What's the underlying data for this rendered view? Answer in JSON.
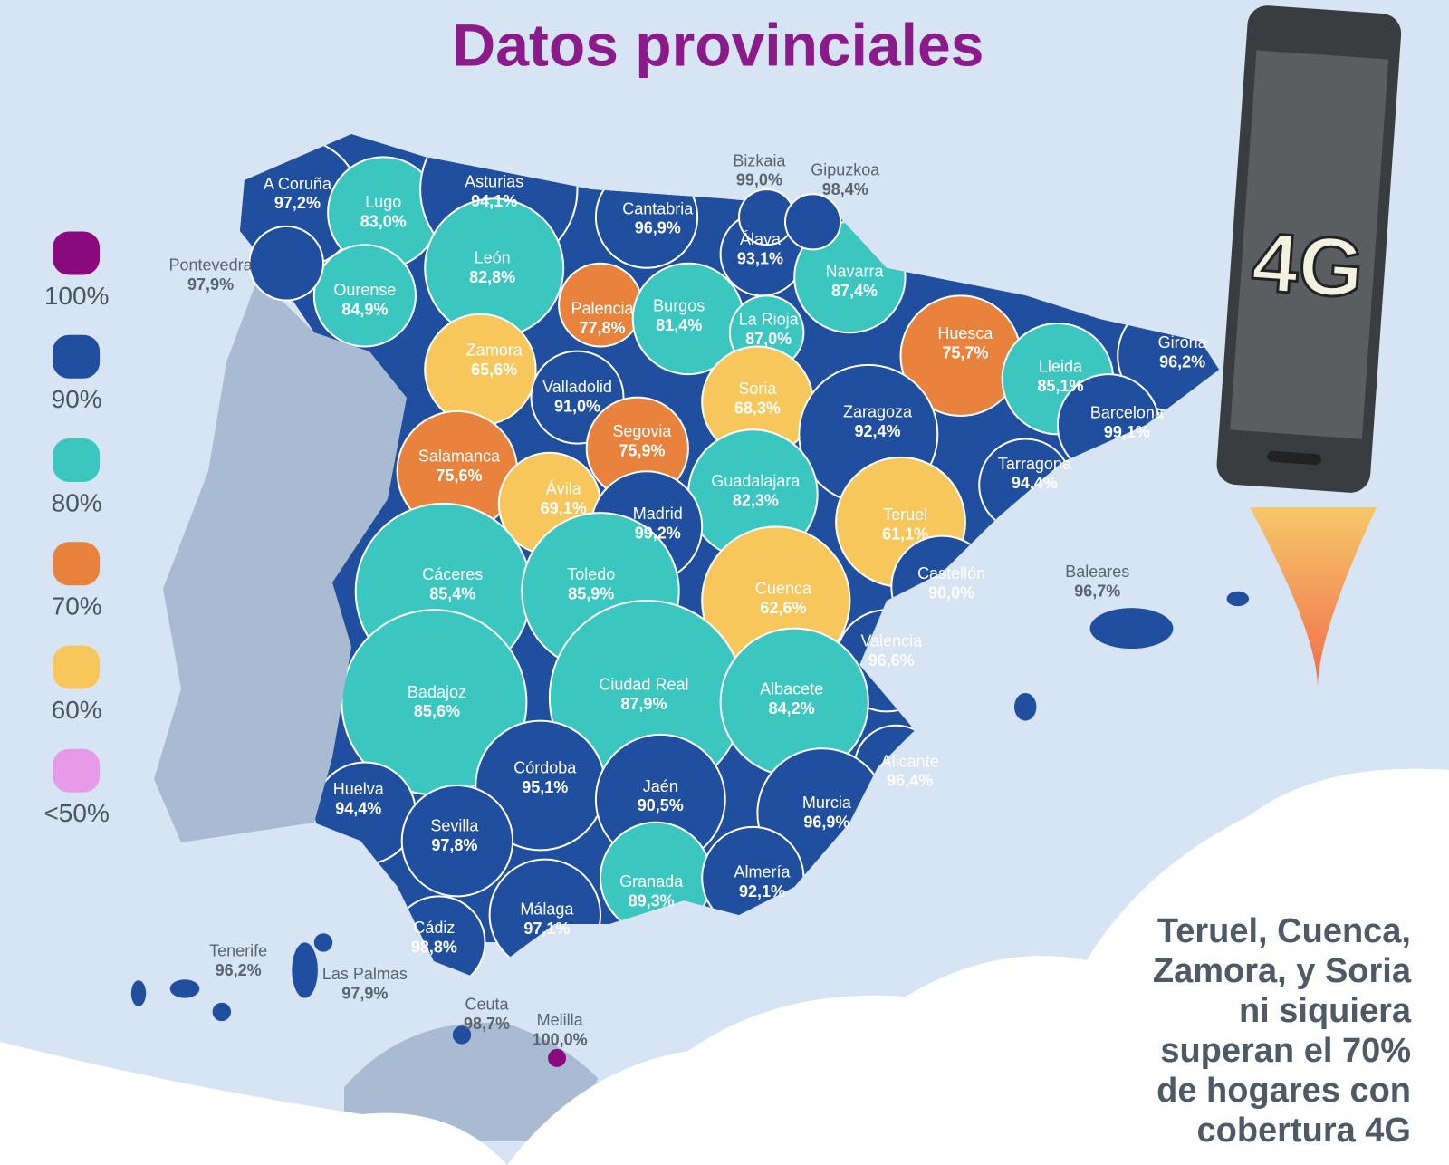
{
  "header": {
    "title": "Datos provinciales"
  },
  "legend": {
    "items": [
      {
        "label": "100%",
        "color": "#8a0a7e"
      },
      {
        "label": "90%",
        "color": "#1f4f9e"
      },
      {
        "label": "80%",
        "color": "#3cc6c0"
      },
      {
        "label": "70%",
        "color": "#e8823c"
      },
      {
        "label": "60%",
        "color": "#f7c75c"
      },
      {
        "label": "<50%",
        "color": "#e59be8"
      }
    ]
  },
  "provinces": [
    {
      "name": "A Coruña",
      "value": "97,2%",
      "color": "#1f4f9e"
    },
    {
      "name": "Lugo",
      "value": "83,0%",
      "color": "#3cc6c0"
    },
    {
      "name": "Asturias",
      "value": "94,1%",
      "color": "#1f4f9e"
    },
    {
      "name": "Cantabria",
      "value": "96,9%",
      "color": "#1f4f9e"
    },
    {
      "name": "Bizkaia",
      "value": "99,0%",
      "color": "#1f4f9e"
    },
    {
      "name": "Gipuzkoa",
      "value": "98,4%",
      "color": "#1f4f9e"
    },
    {
      "name": "Pontevedra",
      "value": "97,9%",
      "color": "#1f4f9e"
    },
    {
      "name": "Ourense",
      "value": "84,9%",
      "color": "#3cc6c0"
    },
    {
      "name": "León",
      "value": "82,8%",
      "color": "#3cc6c0"
    },
    {
      "name": "Palencia",
      "value": "77,8%",
      "color": "#e8823c"
    },
    {
      "name": "Burgos",
      "value": "81,4%",
      "color": "#3cc6c0"
    },
    {
      "name": "Álava",
      "value": "93,1%",
      "color": "#1f4f9e"
    },
    {
      "name": "La Rioja",
      "value": "87,0%",
      "color": "#3cc6c0"
    },
    {
      "name": "Navarra",
      "value": "87,4%",
      "color": "#3cc6c0"
    },
    {
      "name": "Huesca",
      "value": "75,7%",
      "color": "#e8823c"
    },
    {
      "name": "Lleida",
      "value": "85,1%",
      "color": "#3cc6c0"
    },
    {
      "name": "Girona",
      "value": "96,2%",
      "color": "#1f4f9e"
    },
    {
      "name": "Barcelona",
      "value": "99,1%",
      "color": "#1f4f9e"
    },
    {
      "name": "Zamora",
      "value": "65,6%",
      "color": "#f7c75c"
    },
    {
      "name": "Valladolid",
      "value": "91,0%",
      "color": "#1f4f9e"
    },
    {
      "name": "Soria",
      "value": "68,3%",
      "color": "#f7c75c"
    },
    {
      "name": "Zaragoza",
      "value": "92,4%",
      "color": "#1f4f9e"
    },
    {
      "name": "Tarragona",
      "value": "94,4%",
      "color": "#1f4f9e"
    },
    {
      "name": "Salamanca",
      "value": "75,6%",
      "color": "#e8823c"
    },
    {
      "name": "Segovia",
      "value": "75,9%",
      "color": "#e8823c"
    },
    {
      "name": "Ávila",
      "value": "69,1%",
      "color": "#f7c75c"
    },
    {
      "name": "Guadalajara",
      "value": "82,3%",
      "color": "#3cc6c0"
    },
    {
      "name": "Madrid",
      "value": "99,2%",
      "color": "#1f4f9e"
    },
    {
      "name": "Teruel",
      "value": "61,1%",
      "color": "#f7c75c"
    },
    {
      "name": "Castellón",
      "value": "90,0%",
      "color": "#1f4f9e"
    },
    {
      "name": "Baleares",
      "value": "96,7%",
      "color": "#1f4f9e"
    },
    {
      "name": "Cáceres",
      "value": "85,4%",
      "color": "#3cc6c0"
    },
    {
      "name": "Toledo",
      "value": "85,9%",
      "color": "#3cc6c0"
    },
    {
      "name": "Cuenca",
      "value": "62,6%",
      "color": "#f7c75c"
    },
    {
      "name": "Valencia",
      "value": "96,6%",
      "color": "#1f4f9e"
    },
    {
      "name": "Badajoz",
      "value": "85,6%",
      "color": "#3cc6c0"
    },
    {
      "name": "Ciudad Real",
      "value": "87,9%",
      "color": "#3cc6c0"
    },
    {
      "name": "Albacete",
      "value": "84,2%",
      "color": "#3cc6c0"
    },
    {
      "name": "Alicante",
      "value": "96,4%",
      "color": "#1f4f9e"
    },
    {
      "name": "Huelva",
      "value": "94,4%",
      "color": "#1f4f9e"
    },
    {
      "name": "Córdoba",
      "value": "95,1%",
      "color": "#1f4f9e"
    },
    {
      "name": "Jaén",
      "value": "90,5%",
      "color": "#1f4f9e"
    },
    {
      "name": "Murcia",
      "value": "96,9%",
      "color": "#1f4f9e"
    },
    {
      "name": "Sevilla",
      "value": "97,8%",
      "color": "#1f4f9e"
    },
    {
      "name": "Granada",
      "value": "89,3%",
      "color": "#3cc6c0"
    },
    {
      "name": "Almería",
      "value": "92,1%",
      "color": "#1f4f9e"
    },
    {
      "name": "Málaga",
      "value": "97,1%",
      "color": "#1f4f9e"
    },
    {
      "name": "Cádiz",
      "value": "98,8%",
      "color": "#1f4f9e"
    },
    {
      "name": "Tenerife",
      "value": "96,2%",
      "color": "#1f4f9e"
    },
    {
      "name": "Las Palmas",
      "value": "97,9%",
      "color": "#1f4f9e"
    },
    {
      "name": "Ceuta",
      "value": "98,7%",
      "color": "#1f4f9e"
    },
    {
      "name": "Melilla",
      "value": "100,0%",
      "color": "#8a0a7e"
    }
  ],
  "phone": {
    "label": "4G"
  },
  "note": {
    "lines": [
      "Teruel, Cuenca,",
      "Zamora, y Soria",
      "ni siquiera",
      "superan el 70%",
      "de hogares con",
      "cobertura 4G"
    ]
  }
}
